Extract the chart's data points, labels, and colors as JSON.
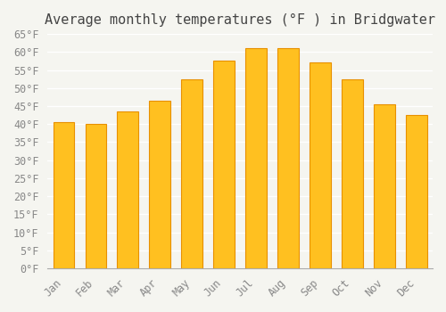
{
  "title": "Average monthly temperatures (°F ) in Bridgwater",
  "months": [
    "Jan",
    "Feb",
    "Mar",
    "Apr",
    "May",
    "Jun",
    "Jul",
    "Aug",
    "Sep",
    "Oct",
    "Nov",
    "Dec"
  ],
  "values": [
    40.5,
    40.0,
    43.5,
    46.5,
    52.5,
    57.5,
    61.0,
    61.0,
    57.0,
    52.5,
    45.5,
    42.5
  ],
  "bar_color_face": "#FFC020",
  "bar_color_edge": "#E89000",
  "ylim": [
    0,
    65
  ],
  "yticks": [
    0,
    5,
    10,
    15,
    20,
    25,
    30,
    35,
    40,
    45,
    50,
    55,
    60,
    65
  ],
  "background_color": "#F5F5F0",
  "grid_color": "#FFFFFF",
  "title_fontsize": 11,
  "tick_fontsize": 8.5
}
